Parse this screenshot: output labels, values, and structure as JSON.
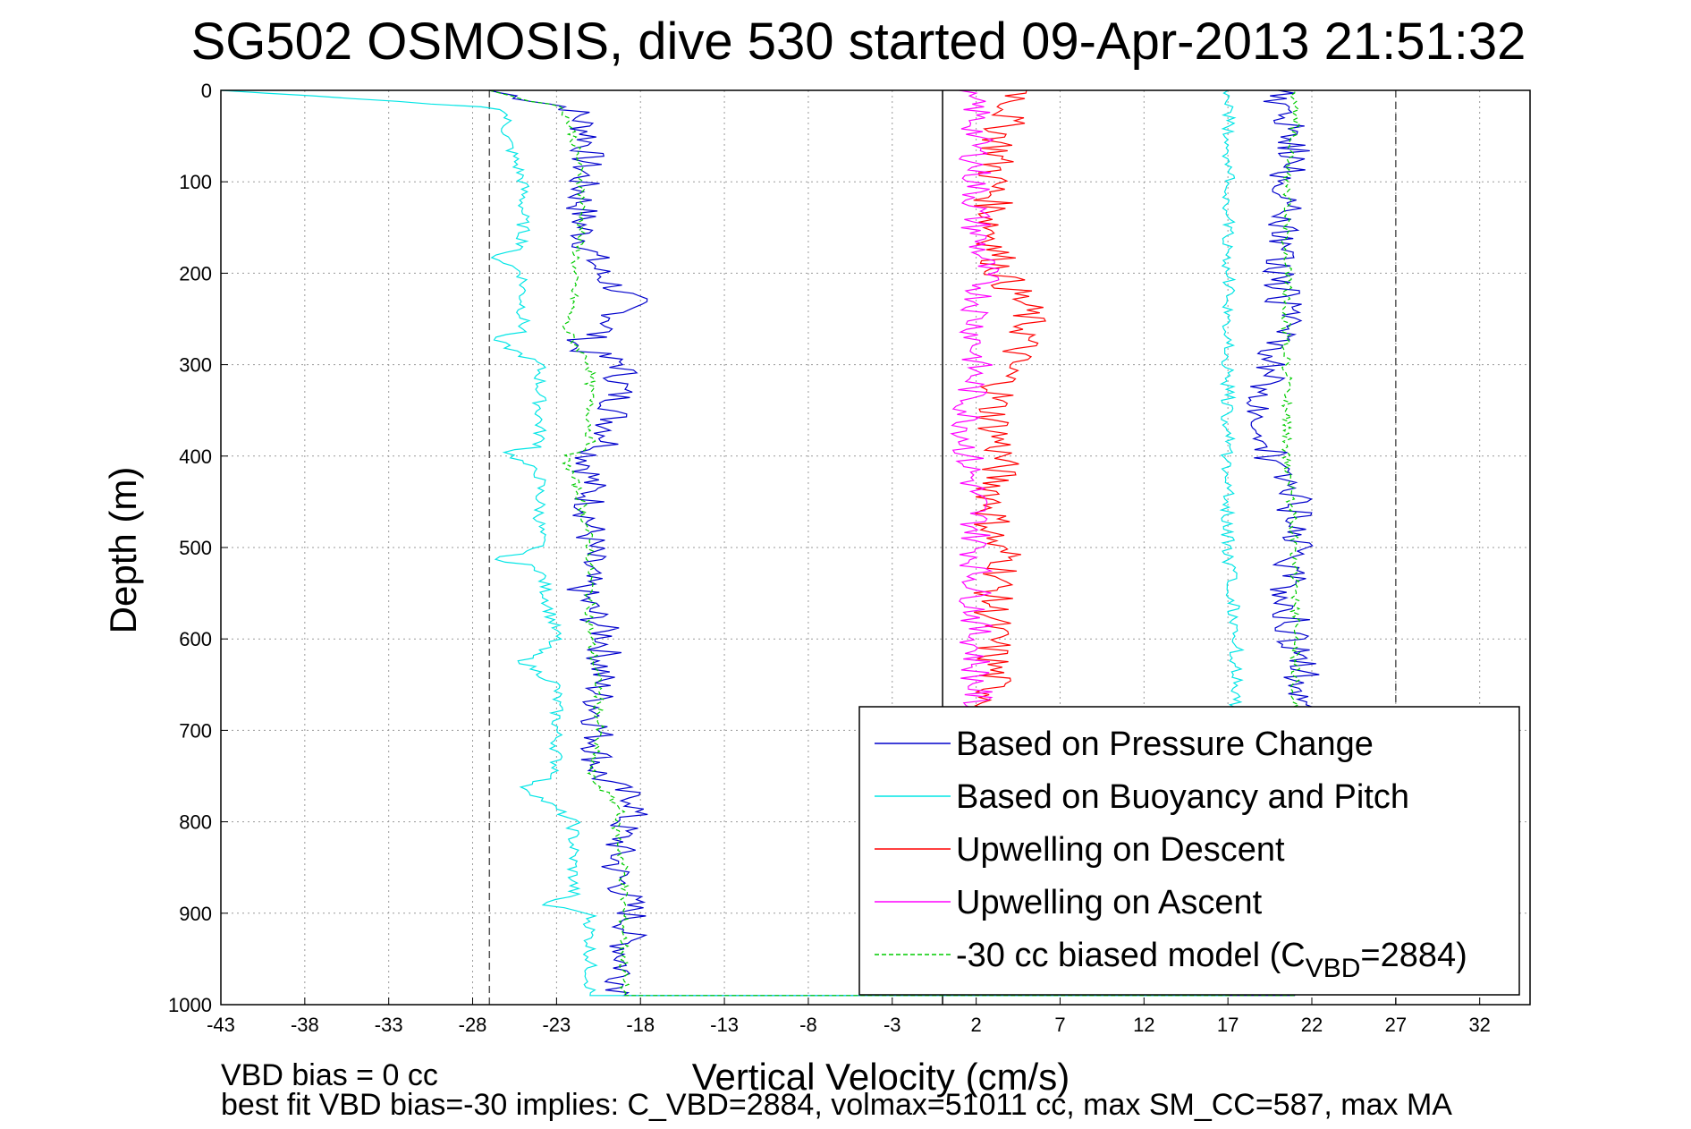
{
  "chart_data": {
    "type": "line",
    "title": "SG502 OSMOSIS, dive 530 started 09-Apr-2013 21:51:32",
    "xlabel": "Vertical Velocity (cm/s)",
    "ylabel": "Depth (m)",
    "xlim": [
      -43,
      35
    ],
    "ylim": [
      0,
      1000
    ],
    "y_reversed": true,
    "x_ticks": [
      -43,
      -38,
      -33,
      -28,
      -23,
      -18,
      -13,
      -8,
      -3,
      2,
      7,
      12,
      17,
      22,
      27,
      32
    ],
    "y_ticks": [
      0,
      100,
      200,
      300,
      400,
      500,
      600,
      700,
      800,
      900,
      1000
    ],
    "grid": true,
    "legend_position": "lower-right",
    "reference_lines": [
      {
        "x": -27,
        "style": "dashed",
        "color": "#555555"
      },
      {
        "x": 0,
        "style": "solid",
        "color": "#000000"
      },
      {
        "x": 27,
        "style": "dashed",
        "color": "#555555"
      }
    ],
    "series": [
      {
        "name": "Based on Pressure Change",
        "color": "#0000cc",
        "style": "solid",
        "descent": {
          "depth": [
            0,
            20,
            50,
            100,
            150,
            200,
            230,
            260,
            280,
            300,
            350,
            390,
            400,
            450,
            500,
            550,
            600,
            650,
            700,
            750,
            780,
            800,
            850,
            900,
            950,
            990
          ],
          "velocity": [
            -27,
            -22,
            -21,
            -21.5,
            -21.5,
            -20.5,
            -18.5,
            -20,
            -22,
            -19,
            -19.5,
            -20,
            -21,
            -21,
            -21,
            -21.5,
            -20,
            -20.5,
            -20.5,
            -20.5,
            -18,
            -19,
            -19.5,
            -18.5,
            -19,
            -19
          ]
        },
        "ascent": {
          "depth": [
            990,
            950,
            900,
            850,
            800,
            750,
            700,
            650,
            600,
            550,
            500,
            450,
            400,
            350,
            300,
            250,
            200,
            150,
            100,
            50,
            20,
            0
          ],
          "velocity": [
            21,
            21,
            21,
            21,
            21,
            21,
            21.5,
            21.5,
            21,
            20.5,
            21,
            21,
            19.5,
            19,
            19.5,
            20.5,
            20,
            20.5,
            20.5,
            21,
            20,
            20
          ]
        }
      },
      {
        "name": "Based on Buoyancy and Pitch",
        "color": "#00e5e5",
        "style": "solid",
        "descent": {
          "depth": [
            0,
            20,
            50,
            100,
            175,
            178,
            200,
            265,
            270,
            300,
            390,
            395,
            420,
            500,
            515,
            520,
            600,
            625,
            650,
            700,
            750,
            760,
            800,
            880,
            890,
            900,
            990
          ],
          "velocity": [
            -43,
            -26,
            -26,
            -25,
            -25,
            -27,
            -25,
            -25,
            -27,
            -24,
            -24,
            -26,
            -24,
            -24,
            -27,
            -24,
            -23,
            -25,
            -23,
            -23,
            -23,
            -25,
            -22,
            -22,
            -24,
            -21,
            -21
          ]
        },
        "ascent": {
          "depth": [
            990,
            900,
            800,
            700,
            600,
            500,
            400,
            300,
            200,
            150,
            100,
            50,
            20,
            0
          ],
          "velocity": [
            17,
            17,
            17,
            17.5,
            17.5,
            17,
            17,
            17,
            17,
            17,
            17,
            17,
            17,
            17
          ]
        }
      },
      {
        "name": "Upwelling on Descent",
        "color": "#ff0000",
        "style": "solid",
        "depth": [
          0,
          20,
          50,
          100,
          150,
          200,
          240,
          270,
          300,
          350,
          400,
          450,
          500,
          510,
          550,
          600,
          650,
          700
        ],
        "velocity": [
          5,
          4,
          3.5,
          3,
          3,
          3.5,
          5,
          5,
          4,
          3,
          3.5,
          3,
          3,
          4,
          3,
          3,
          3,
          3
        ]
      },
      {
        "name": "Upwelling on Ascent",
        "color": "#ff00ff",
        "style": "solid",
        "depth": [
          0,
          20,
          50,
          100,
          150,
          200,
          250,
          300,
          350,
          400,
          450,
          500,
          550,
          600,
          650,
          700
        ],
        "velocity": [
          1,
          2,
          2,
          2,
          2,
          2.5,
          2,
          2,
          1.5,
          1.5,
          2,
          2,
          2,
          2,
          2,
          2
        ]
      },
      {
        "name": "-30 cc biased model (CVBD=2884)",
        "color": "#00cc00",
        "style": "dashed",
        "descent": {
          "depth": [
            0,
            20,
            50,
            100,
            150,
            200,
            230,
            260,
            300,
            350,
            390,
            400,
            450,
            500,
            600,
            650,
            700,
            750,
            790,
            800,
            850,
            900,
            990
          ],
          "velocity": [
            -27,
            -22.5,
            -22,
            -21.5,
            -21.5,
            -22,
            -22,
            -22.5,
            -21,
            -21,
            -21,
            -22.5,
            -21.5,
            -21,
            -21,
            -20.5,
            -20.5,
            -21,
            -19,
            -19.5,
            -19,
            -19,
            -19
          ]
        },
        "ascent": {
          "depth": [
            990,
            900,
            800,
            700,
            600,
            500,
            400,
            300,
            200,
            150,
            100,
            50,
            20,
            0
          ],
          "velocity": [
            21,
            21,
            21,
            21,
            21,
            21,
            20.5,
            20.5,
            20.5,
            20.5,
            20.5,
            21,
            21,
            21
          ]
        }
      }
    ],
    "legend": [
      "Based on Pressure Change",
      "Based on Buoyancy and Pitch",
      "Upwelling on Descent",
      "Upwelling on Ascent",
      "-30 cc biased model (C"
    ],
    "legend_vbd_sub": "VBD",
    "legend_vbd_tail": "=2884)",
    "annotations": [
      "VBD bias = 0 cc",
      "best fit VBD bias=-30 implies: C_VBD=2884, volmax=51011 cc, max SM_CC=587, max MA"
    ]
  }
}
